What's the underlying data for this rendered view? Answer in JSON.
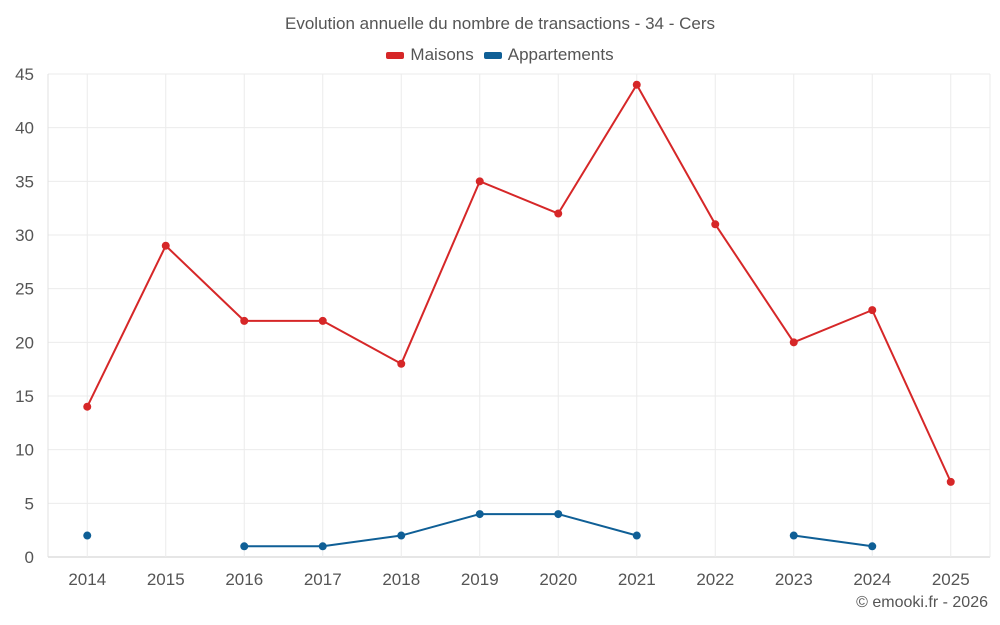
{
  "chart_data": {
    "type": "line",
    "title": "Evolution annuelle du nombre de transactions - 34 - Cers",
    "categories": [
      "2014",
      "2015",
      "2016",
      "2017",
      "2018",
      "2019",
      "2020",
      "2021",
      "2022",
      "2023",
      "2024",
      "2025"
    ],
    "series": [
      {
        "name": "Maisons",
        "color": "#d62728",
        "values": [
          14,
          29,
          22,
          22,
          18,
          35,
          32,
          44,
          31,
          20,
          23,
          7
        ]
      },
      {
        "name": "Appartements",
        "color": "#0f5f96",
        "values": [
          2,
          null,
          1,
          1,
          2,
          4,
          4,
          2,
          null,
          2,
          1,
          null
        ]
      }
    ],
    "ylim": [
      0,
      45
    ],
    "yticks": [
      0,
      5,
      10,
      15,
      20,
      25,
      30,
      35,
      40,
      45
    ],
    "xlabel": "",
    "ylabel": "",
    "grid": true,
    "legend_position": "top-center"
  },
  "credit": "© emooki.fr - 2026"
}
